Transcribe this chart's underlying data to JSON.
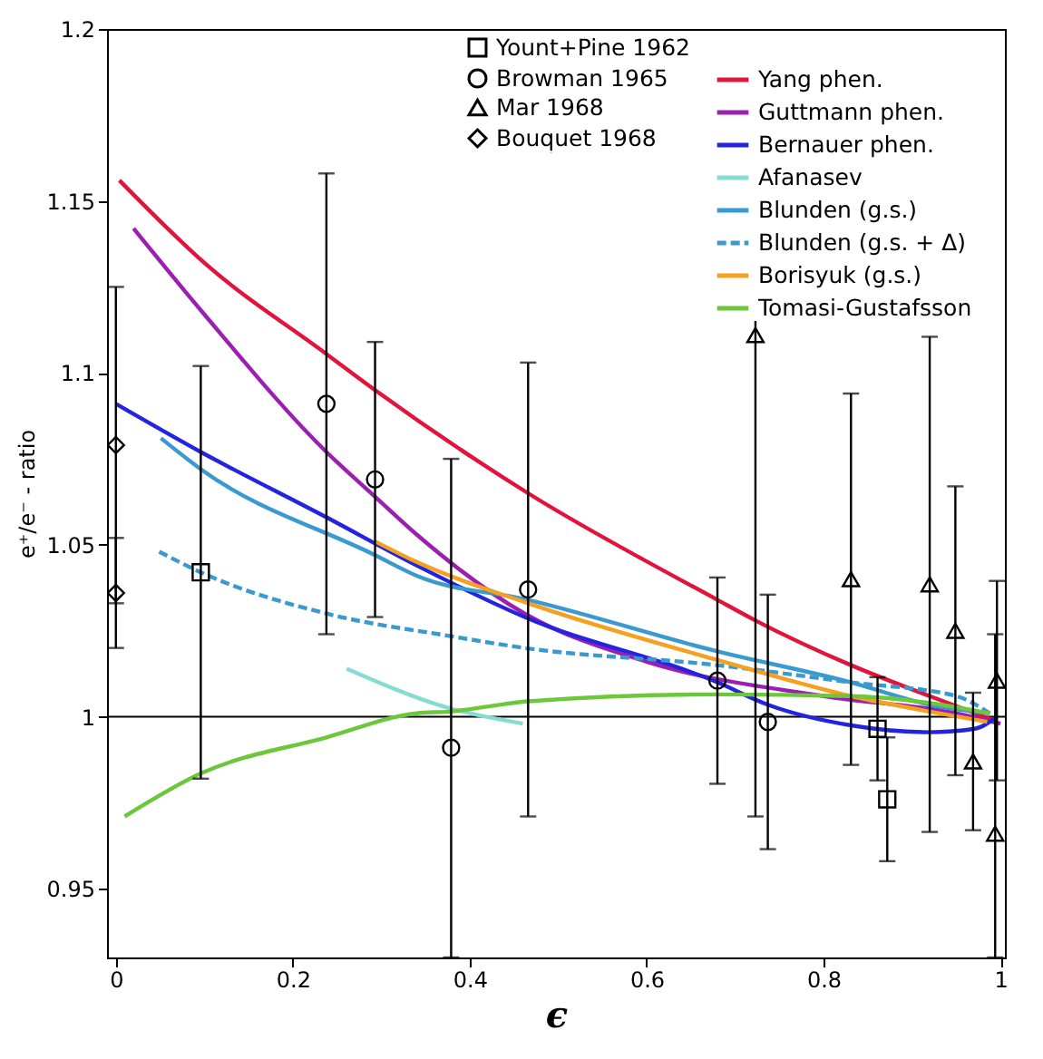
{
  "chart_data": {
    "type": "scatter",
    "xlabel": "ϵ",
    "ylabel": "e⁺/e⁻ - ratio",
    "xlim": [
      -0.01,
      1.005
    ],
    "ylim": [
      0.93,
      1.2
    ],
    "xticks": [
      0,
      0.2,
      0.4,
      0.6,
      0.8,
      1
    ],
    "yticks": [
      0.95,
      1,
      1.05,
      1.1,
      1.15,
      1.2
    ],
    "legend": "top right",
    "ref_lines": [
      {
        "axis": "y",
        "value": 1,
        "color": "#000000"
      }
    ],
    "series": [
      {
        "name": "Yount+Pine 1962",
        "marker": "square",
        "color": "#000000",
        "x": [
          0.096,
          0.861,
          0.872
        ],
        "values": [
          1.042,
          0.9965,
          0.976
        ],
        "errors": [
          0.06,
          0.015,
          0.018
        ]
      },
      {
        "name": "Browman 1965",
        "marker": "circle",
        "color": "#000000",
        "x": [
          0.238,
          0.293,
          0.379,
          0.466,
          0.68,
          0.737
        ],
        "values": [
          1.091,
          1.069,
          0.991,
          1.037,
          1.0105,
          0.9985
        ],
        "errors": [
          0.067,
          0.04,
          [
            0.93,
            1.075
          ],
          0.066,
          0.03,
          0.037
        ]
      },
      {
        "name": "Mar 1968",
        "marker": "triangle",
        "color": "#000000",
        "x": [
          0.723,
          0.831,
          0.92,
          0.949,
          0.969,
          0.996,
          0.994
        ],
        "values": [
          1.111,
          1.04,
          1.0385,
          1.025,
          0.987,
          1.0105,
          0.966
        ],
        "errors": [
          [
            0.971,
            1.135
          ],
          0.054,
          0.072,
          0.042,
          0.02,
          0.029,
          [
            0.93,
            1.024
          ]
        ]
      },
      {
        "name": "Bouquet 1968",
        "marker": "diamond",
        "color": "#000000",
        "x": [
          0,
          0
        ],
        "values": [
          1.079,
          1.036
        ],
        "errors": [
          0.046,
          0.016
        ]
      },
      {
        "name": "Yang phen.",
        "type": "line",
        "line_style": "solid",
        "color": "#e0143c",
        "x": [
          0.004,
          0.1,
          0.238,
          0.293,
          0.466,
          0.68,
          0.723,
          0.831,
          0.92,
          0.992
        ],
        "values": [
          1.156,
          1.132,
          1.1055,
          1.095,
          1.065,
          1.034,
          1.028,
          1.015,
          1.006,
          0.999
        ]
      },
      {
        "name": "Guttmann phen.",
        "type": "line",
        "line_style": "solid",
        "color": "#9b1fb0",
        "x": [
          0.02,
          0.1,
          0.238,
          0.293,
          0.34,
          0.462,
          0.6,
          0.8,
          0.95,
          1.0
        ],
        "values": [
          1.142,
          1.117,
          1.077,
          1.064,
          1.053,
          1.03,
          1.016,
          1.006,
          1.001,
          0.998
        ]
      },
      {
        "name": "Bernauer phen.",
        "type": "line",
        "line_style": "solid",
        "color": "#2424e0",
        "x": [
          0,
          0.096,
          0.238,
          0.34,
          0.462,
          0.68,
          0.737,
          0.831,
          0.92,
          0.971,
          0.996
        ],
        "values": [
          1.091,
          1.077,
          1.058,
          1.044,
          1.029,
          1.01,
          1.0035,
          0.9975,
          0.9955,
          0.9965,
          1.0
        ]
      },
      {
        "name": "Afanasev",
        "type": "line",
        "line_style": "solid",
        "color": "#86dcd2",
        "x": [
          0.261,
          0.377,
          0.46
        ],
        "values": [
          1.014,
          1.0025,
          0.998
        ]
      },
      {
        "name": "Blunden (g.s.)",
        "type": "line",
        "line_style": "solid",
        "color": "#3a9ad0",
        "x": [
          0.051,
          0.096,
          0.293,
          0.34,
          0.466,
          0.68,
          0.831,
          0.92,
          0.988
        ],
        "values": [
          1.081,
          1.072,
          1.047,
          1.041,
          1.034,
          1.019,
          1.01,
          1.0035,
          1.001
        ]
      },
      {
        "name": "Blunden (g.s. + Δ)",
        "type": "line",
        "line_style": "dashed",
        "color": "#3a9ad0",
        "x": [
          0.049,
          0.096,
          0.238,
          0.377,
          0.462,
          0.68,
          0.831,
          0.95,
          0.988
        ],
        "values": [
          1.048,
          1.042,
          1.03,
          1.0235,
          1.02,
          1.015,
          1.01,
          1.006,
          1.001
        ]
      },
      {
        "name": "Borisyuk (g.s.)",
        "type": "line",
        "line_style": "solid",
        "color": "#f5a020",
        "x": [
          0.293,
          0.34,
          0.466,
          0.68,
          0.831,
          0.92,
          0.985
        ],
        "values": [
          1.051,
          1.045,
          1.033,
          1.0165,
          1.006,
          1.0015,
          0.9985
        ]
      },
      {
        "name": "Tomasi-Gustafsson",
        "type": "line",
        "line_style": "solid",
        "color": "#6cc83a",
        "x": [
          0.01,
          0.096,
          0.238,
          0.34,
          0.377,
          0.466,
          0.68,
          0.831,
          0.92,
          0.988
        ],
        "values": [
          0.971,
          0.9835,
          0.994,
          1.001,
          1.0015,
          1.0045,
          1.0065,
          1.006,
          1.004,
          1.001
        ]
      }
    ]
  }
}
